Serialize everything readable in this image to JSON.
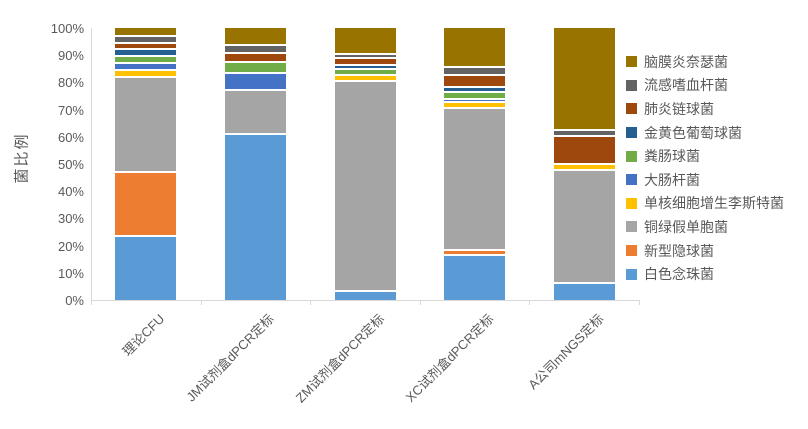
{
  "chart_data": {
    "type": "bar",
    "subtype": "stacked-percent-column",
    "title": "",
    "xlabel": "",
    "ylabel": "菌比例",
    "ylim": [
      0,
      100
    ],
    "grid": false,
    "y_tick_labels": [
      "100%",
      "90%",
      "80%",
      "70%",
      "60%",
      "50%",
      "40%",
      "30%",
      "20%",
      "10%",
      "0%"
    ],
    "categories": [
      "理论CFU",
      "JM试剂盒dPCR定标",
      "ZM试剂盒dPCR定标",
      "XC试剂盒dPCR定标",
      "A公司mNGS定标"
    ],
    "series": [
      {
        "name": "白色念珠菌",
        "color": "#5B9BD5",
        "values": [
          24,
          61.5,
          3.5,
          17,
          6.5
        ]
      },
      {
        "name": "新型隐球菌",
        "color": "#ED7D31",
        "values": [
          23.5,
          0,
          0,
          1.8,
          0
        ]
      },
      {
        "name": "铜绿假单胞菌",
        "color": "#A5A5A5",
        "values": [
          35,
          16,
          77.4,
          52.3,
          41.8
        ]
      },
      {
        "name": "单核细胞增生李斯特菌",
        "color": "#FFC000",
        "values": [
          2.5,
          0,
          2.2,
          1.9,
          2
        ]
      },
      {
        "name": "大肠杆菌",
        "color": "#4472C4",
        "values": [
          2.5,
          6.5,
          0,
          1.2,
          0
        ]
      },
      {
        "name": "粪肠球菌",
        "color": "#70AD47",
        "values": [
          2.5,
          4,
          2.1,
          2.8,
          0
        ]
      },
      {
        "name": "金黄色葡萄球菌",
        "color": "#255E91",
        "values": [
          2.5,
          0,
          1.6,
          1.8,
          0
        ]
      },
      {
        "name": "肺炎链球菌",
        "color": "#9E480E",
        "values": [
          2.5,
          3,
          2.7,
          4.4,
          10.2
        ]
      },
      {
        "name": "流感嗜血杆菌",
        "color": "#636363",
        "values": [
          2.5,
          3,
          1.3,
          2.9,
          2.2
        ]
      },
      {
        "name": "脑膜炎奈瑟菌",
        "color": "#997300",
        "values": [
          2.5,
          6,
          9.2,
          13.9,
          37.3
        ]
      }
    ],
    "legend": {
      "position": "right",
      "items": [
        "脑膜炎奈瑟菌",
        "流感嗜血杆菌",
        "肺炎链球菌",
        "金黄色葡萄球菌",
        "粪肠球菌",
        "大肠杆菌",
        "单核细胞增生李斯特菌",
        "铜绿假单胞菌",
        "新型隐球菌",
        "白色念珠菌"
      ]
    },
    "colors": {
      "axis_line": "#d9d9d9",
      "text": "#595959",
      "plot_background": "#ffffff"
    }
  }
}
